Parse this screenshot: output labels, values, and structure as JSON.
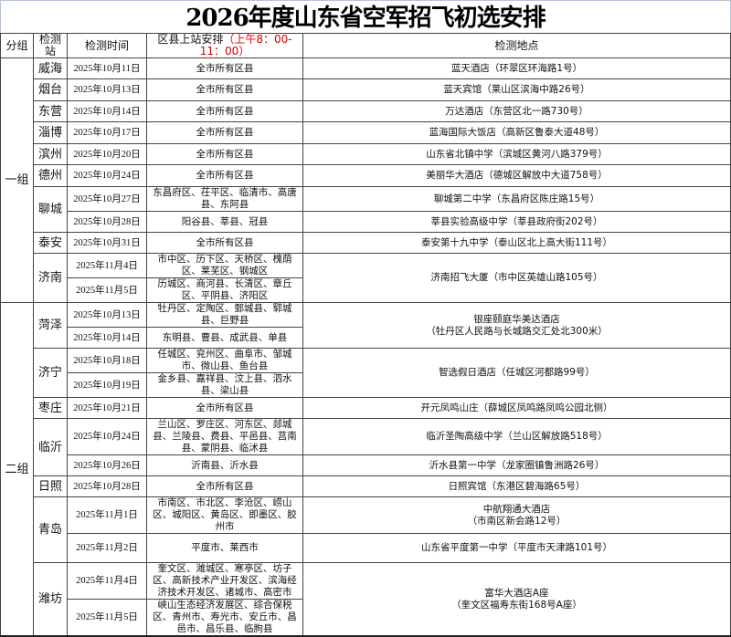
{
  "title": "2026年度山东省空军招飞初选安排",
  "headers": {
    "group": "分组",
    "station": "检测站",
    "time": "检测时间",
    "districts": "区县上站安排",
    "districts_time": "（上午8：00-11：00）",
    "location": "检测地点"
  },
  "colors": {
    "time_note": "#e00000",
    "border": "#444444"
  },
  "groups": [
    {
      "name": "一组",
      "stations": [
        {
          "name": "威海",
          "slots": [
            {
              "date": "2025年10月11日",
              "districts": "全市所有区县",
              "location": "蓝天酒店（环翠区环海路1号）"
            }
          ]
        },
        {
          "name": "烟台",
          "slots": [
            {
              "date": "2025年10月13日",
              "districts": "全市所有区县",
              "location": "蓝天宾馆（莱山区滨海中路26号）"
            }
          ]
        },
        {
          "name": "东营",
          "slots": [
            {
              "date": "2025年10月14日",
              "districts": "全市所有区县",
              "location": "万达酒店（东营区北一路730号）"
            }
          ]
        },
        {
          "name": "淄博",
          "slots": [
            {
              "date": "2025年10月17日",
              "districts": "全市所有区县",
              "location": "蓝海国际大饭店（高新区鲁泰大道48号）"
            }
          ]
        },
        {
          "name": "滨州",
          "slots": [
            {
              "date": "2025年10月20日",
              "districts": "全市所有区县",
              "location": "山东省北镇中学（滨城区黄河八路379号）"
            }
          ]
        },
        {
          "name": "德州",
          "slots": [
            {
              "date": "2025年10月24日",
              "districts": "全市所有区县",
              "location": "美丽华大酒店（德城区解放中大道758号）"
            }
          ]
        },
        {
          "name": "聊城",
          "slots": [
            {
              "date": "2025年10月27日",
              "districts": "东昌府区、茌平区、临清市、高唐县、东阿县",
              "location": "聊城第二中学（东昌府区陈庄路15号）"
            },
            {
              "date": "2025年10月28日",
              "districts": "阳谷县、莘县、冠县",
              "location": "莘县实验高级中学（莘县政府街202号）"
            }
          ]
        },
        {
          "name": "泰安",
          "slots": [
            {
              "date": "2025年10月31日",
              "districts": "全市所有区县",
              "location": "泰安第十九中学（泰山区北上高大街111号）"
            }
          ]
        },
        {
          "name": "济南",
          "location": "济南招飞大厦（市中区英雄山路105号）",
          "slots": [
            {
              "date": "2025年11月4日",
              "districts": "市中区、历下区、天桥区、槐荫区、莱芜区、钢城区"
            },
            {
              "date": "2025年11月5日",
              "districts": "历城区、商河县、长清区、章丘区、平阴县、济阳区"
            }
          ]
        }
      ]
    },
    {
      "name": "二组",
      "stations": [
        {
          "name": "菏泽",
          "location": "银座颐庭华美达酒店\n（牡丹区人民路与长城路交汇处北300米）",
          "slots": [
            {
              "date": "2025年10月13日",
              "districts": "牡丹区、定陶区、鄄城县、郓城县、巨野县"
            },
            {
              "date": "2025年10月14日",
              "districts": "东明县、曹县、成武县、单县"
            }
          ]
        },
        {
          "name": "济宁",
          "location": "智选假日酒店（任城区河都路99号）",
          "slots": [
            {
              "date": "2025年10月18日",
              "districts": "任城区、兖州区、曲阜市、邹城市、微山县、鱼台县"
            },
            {
              "date": "2025年10月19日",
              "districts": "金乡县、嘉祥县、汶上县、泗水县、梁山县"
            }
          ]
        },
        {
          "name": "枣庄",
          "slots": [
            {
              "date": "2025年10月21日",
              "districts": "全市所有区县",
              "location": "开元凤鸣山庄（薛城区凤鸣路凤鸣公园北侧）"
            }
          ]
        },
        {
          "name": "临沂",
          "slots": [
            {
              "date": "2025年10月24日",
              "districts": "兰山区、罗庄区、河东区、郯城县、兰陵县、费县、平邑县、莒南县、蒙阴县、临沭县",
              "location": "临沂圣陶高级中学（兰山区解放路518号）"
            },
            {
              "date": "2025年10月26日",
              "districts": "沂南县、沂水县",
              "location": "沂水县第一中学（龙家圈镇鲁洲路26号）"
            }
          ]
        },
        {
          "name": "日照",
          "slots": [
            {
              "date": "2025年10月28日",
              "districts": "全市所有区县",
              "location": "日照宾馆（东港区碧海路65号）"
            }
          ]
        },
        {
          "name": "青岛",
          "slots": [
            {
              "date": "2025年11月1日",
              "districts": "市南区、市北区、李沧区、崂山区、城阳区、黄岛区、即墨区、胶州市",
              "location": "中航翔通大酒店\n（市南区新会路12号）"
            },
            {
              "date": "2025年11月2日",
              "districts": "平度市、莱西市",
              "location": "山东省平度第一中学（平度市天津路101号）"
            }
          ]
        },
        {
          "name": "潍坊",
          "location": "富华大酒店A座\n（奎文区福寿东街168号A座）",
          "slots": [
            {
              "date": "2025年11月4日",
              "districts": "奎文区、潍城区、寒亭区、坊子区、高新技术产业开发区、滨海经济技术开发区、诸城市、高密市"
            },
            {
              "date": "2025年11月5日",
              "districts": "峡山生态经济发展区、综合保税区、青州市、寿光市、安丘市、昌邑市、昌乐县、临朐县"
            }
          ]
        }
      ]
    }
  ]
}
